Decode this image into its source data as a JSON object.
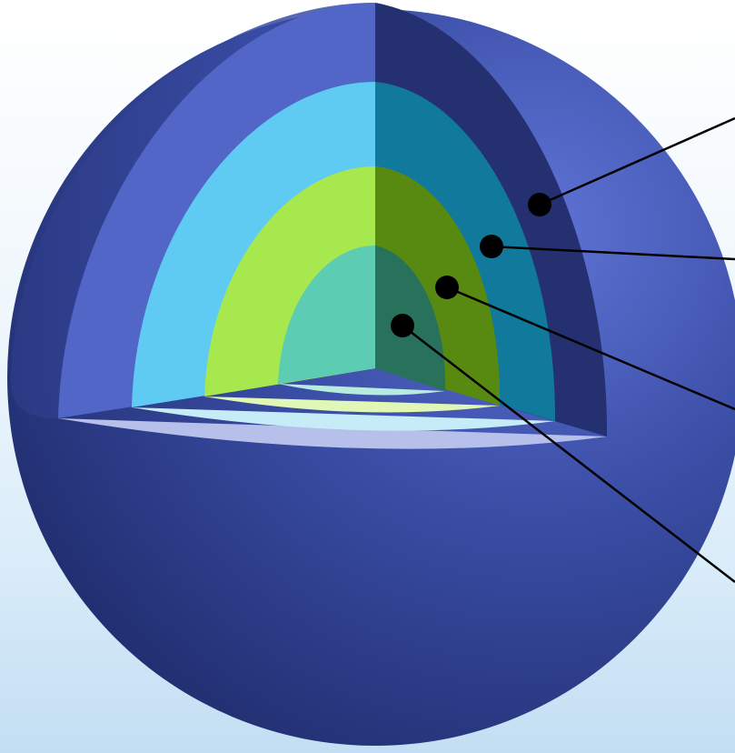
{
  "diagram": {
    "type": "layered-sphere-cutaway",
    "layers": [
      {
        "name": "outer-shell",
        "colors": {
          "front": "#5266c8",
          "side": "#253070",
          "rim": "#b7c0ea"
        }
      },
      {
        "name": "layer-2",
        "colors": {
          "front": "#5fcbf2",
          "side": "#10799c",
          "rim": "#c6ecf8"
        }
      },
      {
        "name": "layer-3",
        "colors": {
          "front": "#a6e84e",
          "side": "#588a12",
          "rim": "#e1f7b6"
        }
      },
      {
        "name": "core",
        "colors": {
          "front": "#5ccdb2",
          "side": "#28725c",
          "rim": "#b8ebdf"
        }
      }
    ],
    "sphere_colors": {
      "highlight": "#5f73d6",
      "mid": "#3a4ea6",
      "shadow": "#1f2b6b"
    },
    "callout_color": "#000000",
    "callouts": [
      {
        "layer": "outer-shell"
      },
      {
        "layer": "layer-2"
      },
      {
        "layer": "layer-3"
      },
      {
        "layer": "core"
      }
    ]
  }
}
